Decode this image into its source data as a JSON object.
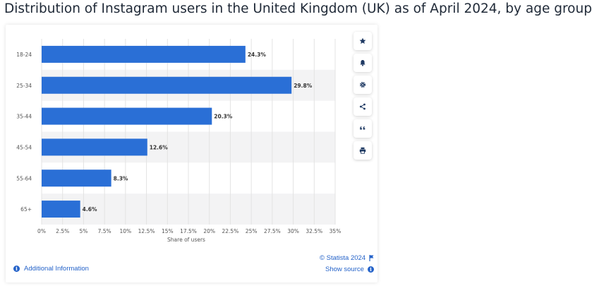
{
  "page": {
    "title": "Distribution of Instagram users in the United Kingdom (UK) as of April 2024, by age group"
  },
  "toolbar": {
    "buttons": [
      "star-icon",
      "bell-icon",
      "gear-icon",
      "share-icon",
      "quote-icon",
      "print-icon"
    ]
  },
  "footer": {
    "info_label": "Additional Information",
    "copyright": "© Statista 2024",
    "source_label": "Show source"
  },
  "colors": {
    "bar": "#2a6fd6",
    "band": "#f3f3f4",
    "link": "#2563c9"
  },
  "chart_data": {
    "type": "bar",
    "orientation": "horizontal",
    "categories": [
      "18-24",
      "25-34",
      "35-44",
      "45-54",
      "55-64",
      "65+"
    ],
    "values": [
      24.3,
      29.8,
      20.3,
      12.6,
      8.3,
      4.6
    ],
    "value_labels": [
      "24.3%",
      "29.8%",
      "20.3%",
      "12.6%",
      "8.3%",
      "4.6%"
    ],
    "xlabel": "Share of users",
    "ylabel": "",
    "xlim": [
      0,
      35
    ],
    "xticks": [
      0,
      2.5,
      5,
      7.5,
      10,
      12.5,
      15,
      17.5,
      20,
      22.5,
      25,
      27.5,
      30,
      32.5,
      35
    ],
    "xtick_labels": [
      "0%",
      "2.5%",
      "5%",
      "7.5%",
      "10%",
      "12.5%",
      "15%",
      "17.5%",
      "20%",
      "22.5%",
      "25%",
      "27.5%",
      "30%",
      "32.5%",
      "35%"
    ],
    "grid": true,
    "legend": "none"
  }
}
